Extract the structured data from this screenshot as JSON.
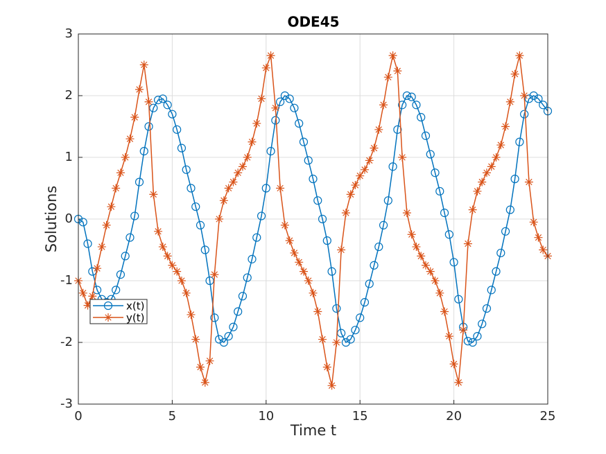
{
  "chart_data": {
    "type": "line",
    "title": "ODE45",
    "x_label": "Time t",
    "y_label": "Solutions",
    "x": [
      0,
      0.25,
      0.5,
      0.75,
      1,
      1.25,
      1.5,
      1.75,
      2,
      2.25,
      2.5,
      2.75,
      3,
      3.25,
      3.5,
      3.75,
      4,
      4.25,
      4.5,
      4.75,
      5,
      5.25,
      5.5,
      5.75,
      6,
      6.25,
      6.5,
      6.75,
      7,
      7.25,
      7.5,
      7.75,
      8,
      8.25,
      8.5,
      8.75,
      9,
      9.25,
      9.5,
      9.75,
      10,
      10.25,
      10.5,
      10.75,
      11,
      11.25,
      11.5,
      11.75,
      12,
      12.25,
      12.5,
      12.75,
      13,
      13.25,
      13.5,
      13.75,
      14,
      14.25,
      14.5,
      14.75,
      15,
      15.25,
      15.5,
      15.75,
      16,
      16.25,
      16.5,
      16.75,
      17,
      17.25,
      17.5,
      17.75,
      18,
      18.25,
      18.5,
      18.75,
      19,
      19.25,
      19.5,
      19.75,
      20,
      20.25,
      20.5,
      20.75,
      21,
      21.25,
      21.5,
      21.75,
      22,
      22.25,
      22.5,
      22.75,
      23,
      23.25,
      23.5,
      23.75,
      24,
      24.25,
      24.5,
      24.75,
      25
    ],
    "series": [
      {
        "name": "x(t)",
        "color": "#0072bd",
        "marker": "o",
        "values": [
          0,
          -0.05,
          -0.4,
          -0.85,
          -1.15,
          -1.3,
          -1.35,
          -1.3,
          -1.15,
          -0.9,
          -0.6,
          -0.3,
          0.05,
          0.6,
          1.1,
          1.5,
          1.8,
          1.93,
          1.95,
          1.85,
          1.7,
          1.45,
          1.15,
          0.8,
          0.5,
          0.2,
          -0.1,
          -0.5,
          -1.0,
          -1.6,
          -1.95,
          -2.0,
          -1.9,
          -1.75,
          -1.5,
          -1.25,
          -0.95,
          -0.65,
          -0.3,
          0.05,
          0.5,
          1.1,
          1.6,
          1.9,
          2.0,
          1.95,
          1.8,
          1.55,
          1.25,
          0.95,
          0.65,
          0.3,
          0.0,
          -0.35,
          -0.85,
          -1.45,
          -1.85,
          -2.0,
          -1.95,
          -1.8,
          -1.6,
          -1.35,
          -1.05,
          -0.75,
          -0.45,
          -0.1,
          0.3,
          0.85,
          1.45,
          1.85,
          2.0,
          1.98,
          1.85,
          1.65,
          1.35,
          1.05,
          0.75,
          0.45,
          0.1,
          -0.25,
          -0.7,
          -1.3,
          -1.75,
          -1.98,
          -2.0,
          -1.9,
          -1.7,
          -1.45,
          -1.15,
          -0.85,
          -0.55,
          -0.2,
          0.15,
          0.65,
          1.25,
          1.7,
          1.95,
          2.0,
          1.95,
          1.85,
          1.75
        ]
      },
      {
        "name": "y(t)",
        "color": "#d95319",
        "marker": "*",
        "values": [
          -1.0,
          -1.2,
          -1.4,
          -1.25,
          -0.8,
          -0.45,
          -0.1,
          0.2,
          0.5,
          0.75,
          1.0,
          1.3,
          1.65,
          2.1,
          2.5,
          1.9,
          0.4,
          -0.2,
          -0.45,
          -0.6,
          -0.75,
          -0.85,
          -1.0,
          -1.2,
          -1.55,
          -1.95,
          -2.4,
          -2.65,
          -2.3,
          -0.9,
          0.0,
          0.3,
          0.5,
          0.6,
          0.75,
          0.85,
          1.0,
          1.25,
          1.55,
          1.95,
          2.45,
          2.65,
          1.8,
          0.5,
          -0.1,
          -0.35,
          -0.55,
          -0.7,
          -0.85,
          -1.0,
          -1.2,
          -1.5,
          -1.95,
          -2.4,
          -2.7,
          -2.0,
          -0.5,
          0.1,
          0.4,
          0.55,
          0.7,
          0.8,
          0.95,
          1.15,
          1.45,
          1.85,
          2.3,
          2.65,
          2.4,
          1.0,
          0.1,
          -0.25,
          -0.45,
          -0.6,
          -0.75,
          -0.85,
          -1.0,
          -1.2,
          -1.5,
          -1.9,
          -2.35,
          -2.65,
          -1.8,
          -0.4,
          0.15,
          0.45,
          0.6,
          0.75,
          0.85,
          1.0,
          1.2,
          1.5,
          1.9,
          2.35,
          2.65,
          2.0,
          0.6,
          -0.05,
          -0.3,
          -0.5,
          -0.6
        ]
      }
    ],
    "xlim": [
      0,
      25
    ],
    "xticks": [
      0,
      5,
      10,
      15,
      20,
      25
    ],
    "ylim": [
      -3,
      3
    ],
    "yticks": [
      -3,
      -2,
      -1,
      0,
      1,
      2,
      3
    ],
    "grid": true
  }
}
